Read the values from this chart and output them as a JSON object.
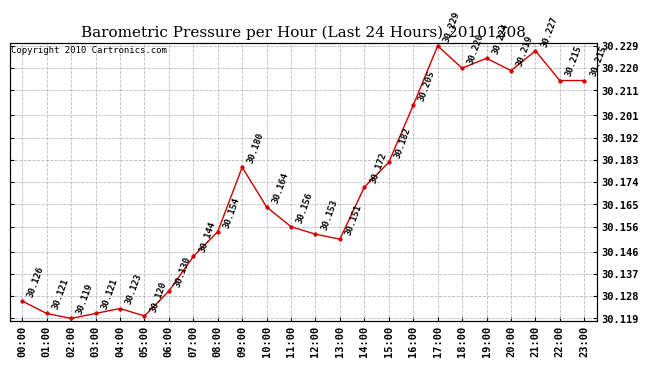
{
  "title": "Barometric Pressure per Hour (Last 24 Hours) 20101208",
  "copyright": "Copyright 2010 Cartronics.com",
  "hours": [
    "00:00",
    "01:00",
    "02:00",
    "03:00",
    "04:00",
    "05:00",
    "06:00",
    "07:00",
    "08:00",
    "09:00",
    "10:00",
    "11:00",
    "12:00",
    "13:00",
    "14:00",
    "15:00",
    "16:00",
    "17:00",
    "18:00",
    "19:00",
    "20:00",
    "21:00",
    "22:00",
    "23:00"
  ],
  "values": [
    30.126,
    30.121,
    30.119,
    30.121,
    30.123,
    30.12,
    30.13,
    30.144,
    30.154,
    30.18,
    30.164,
    30.156,
    30.153,
    30.151,
    30.172,
    30.182,
    30.205,
    30.229,
    30.22,
    30.224,
    30.219,
    30.227,
    30.215,
    30.215
  ],
  "ylim_min": 30.119,
  "ylim_max": 30.229,
  "yticks": [
    30.119,
    30.128,
    30.137,
    30.146,
    30.156,
    30.165,
    30.174,
    30.183,
    30.192,
    30.201,
    30.211,
    30.22,
    30.229
  ],
  "line_color": "#cc0000",
  "marker_color": "#cc0000",
  "background_color": "#ffffff",
  "grid_color": "#bbbbbb",
  "title_fontsize": 11,
  "label_fontsize": 7.5,
  "annotation_fontsize": 6.5,
  "copyright_fontsize": 6.5
}
